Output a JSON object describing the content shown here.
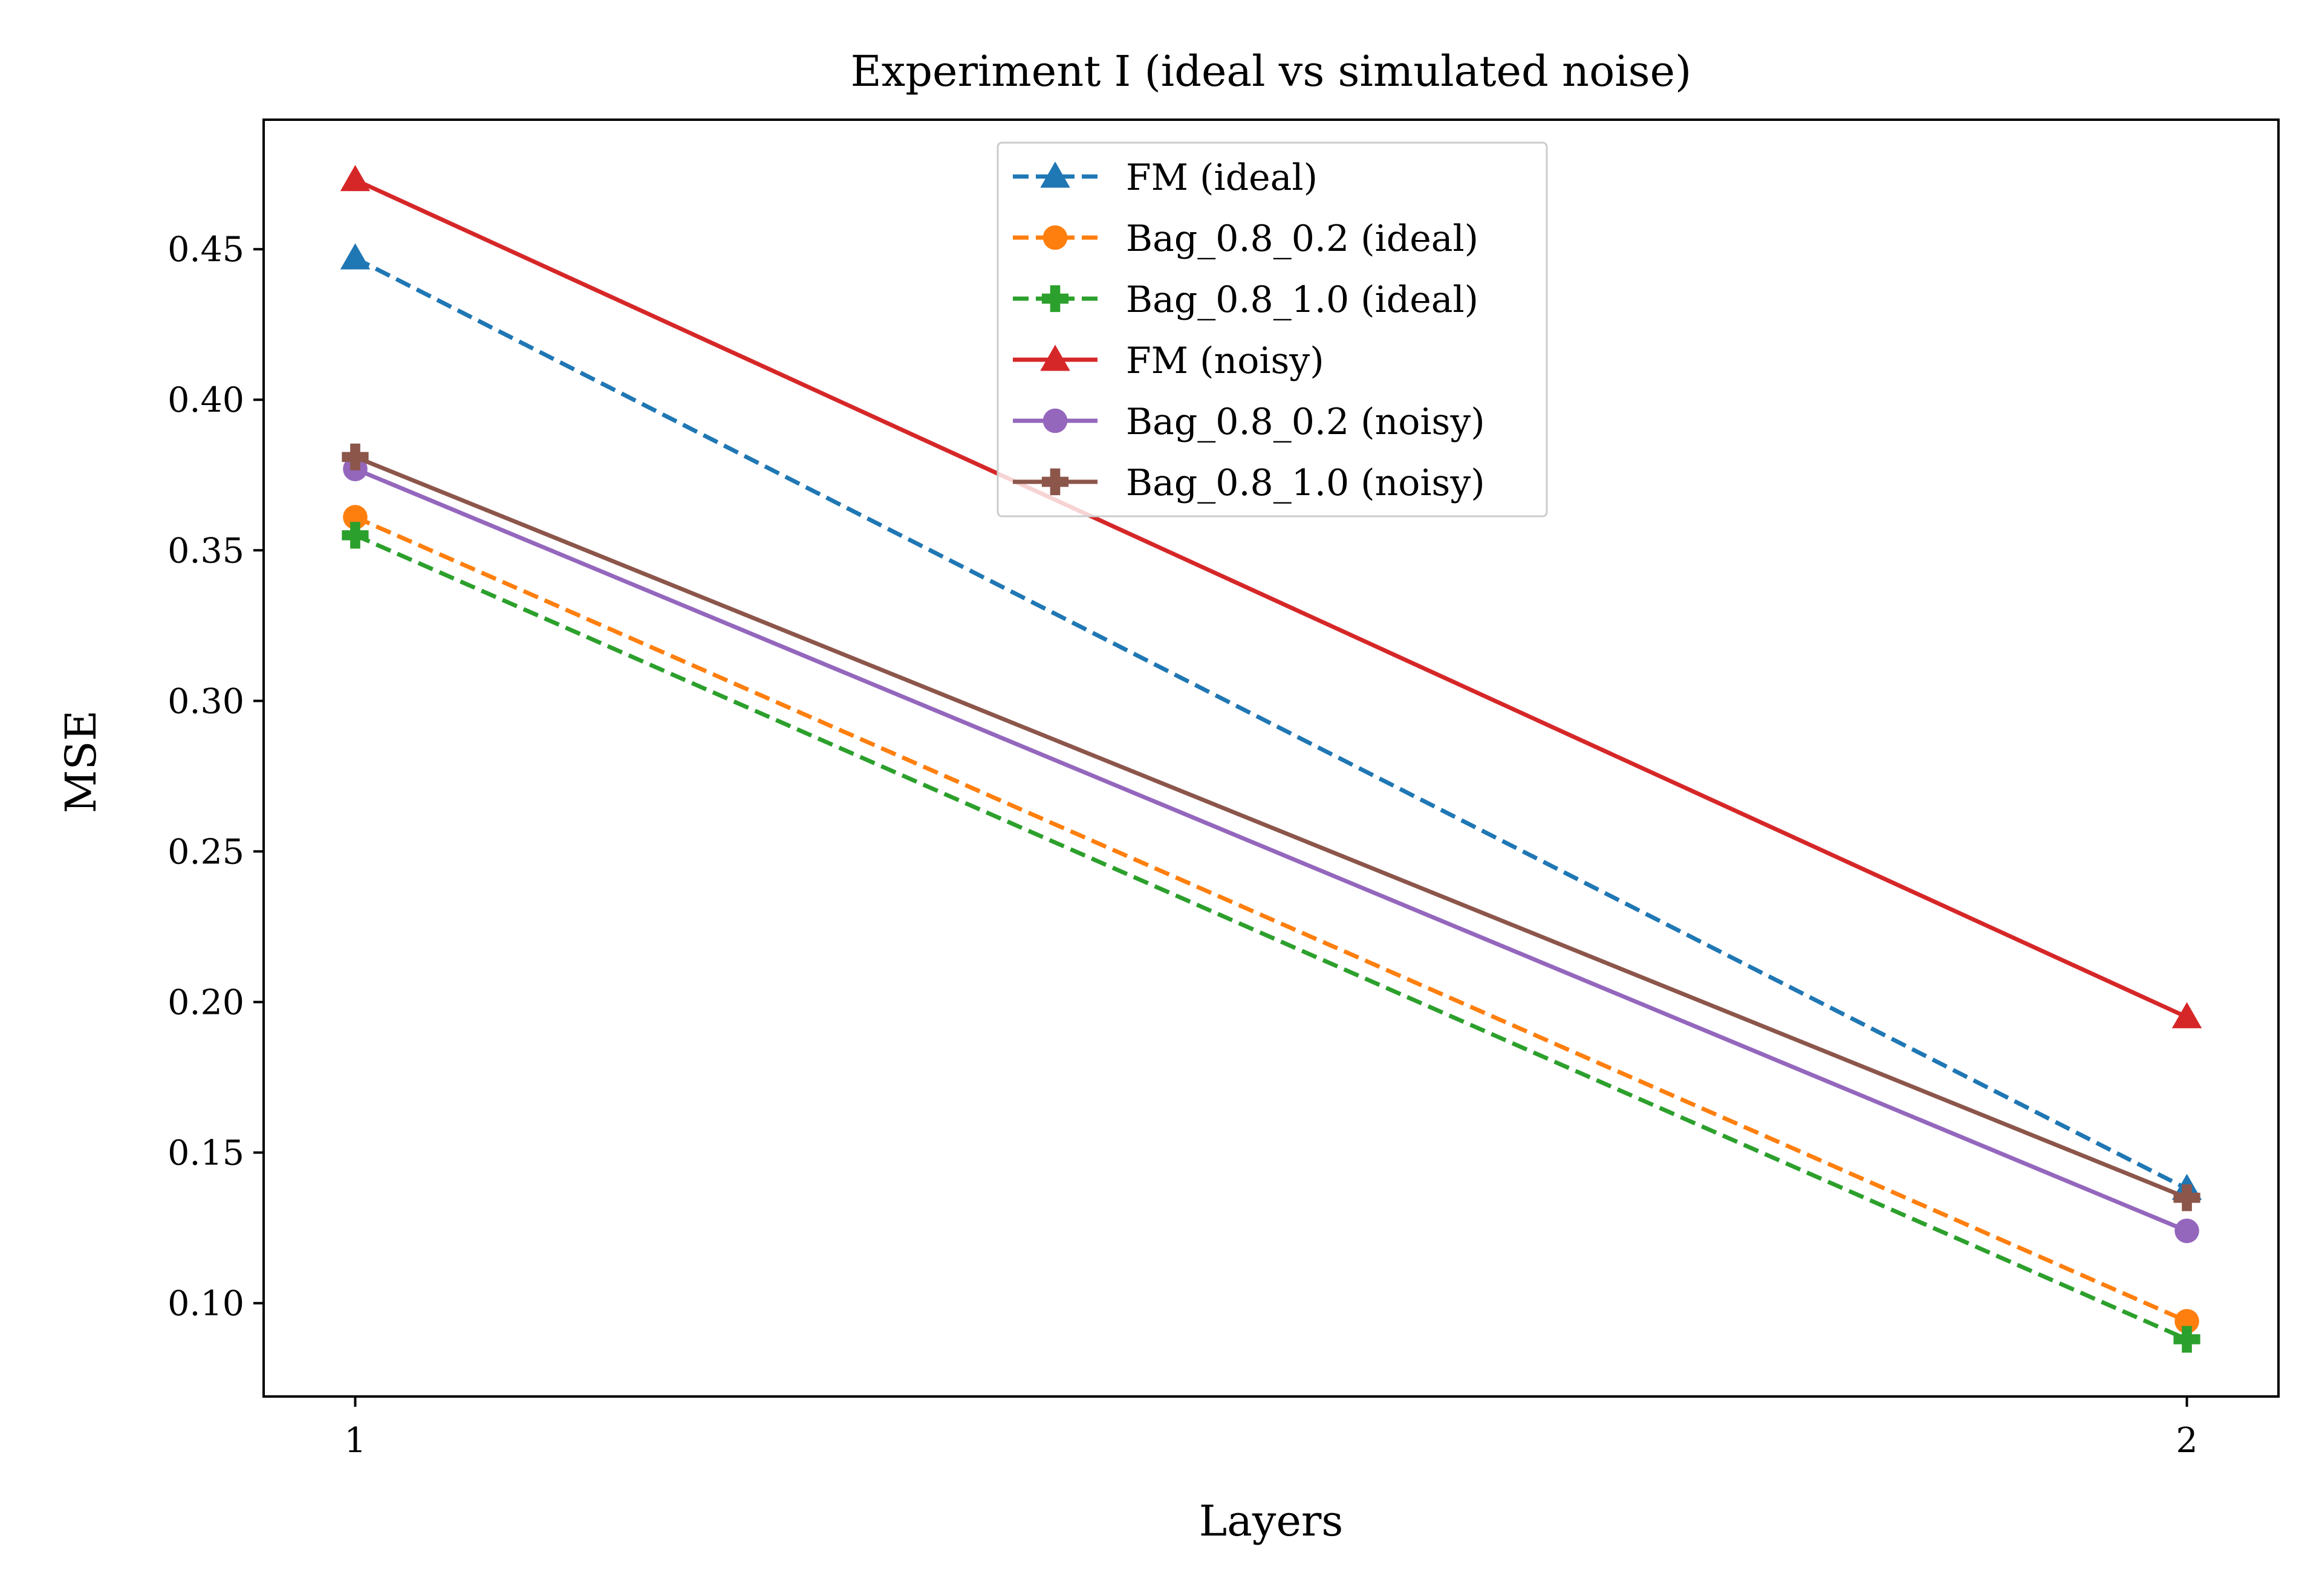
{
  "chart_data": {
    "type": "line",
    "title": "Experiment I (ideal vs simulated noise)",
    "xlabel": "Layers",
    "ylabel": "MSE",
    "x": [
      1,
      2
    ],
    "x_ticks": [
      "1",
      "2"
    ],
    "y_ticks": [
      "0.10",
      "0.15",
      "0.20",
      "0.25",
      "0.30",
      "0.35",
      "0.40",
      "0.45"
    ],
    "xlim": [
      0.95,
      2.05
    ],
    "ylim": [
      0.069,
      0.493
    ],
    "grid": false,
    "legend_position": "upper center",
    "series": [
      {
        "name": "FM (ideal)",
        "values": [
          0.447,
          0.138
        ],
        "color": "#1f77b4",
        "dashed": true,
        "marker": "triangle"
      },
      {
        "name": "Bag_0.8_0.2 (ideal)",
        "values": [
          0.361,
          0.094
        ],
        "color": "#ff7f0e",
        "dashed": true,
        "marker": "circle"
      },
      {
        "name": "Bag_0.8_1.0 (ideal)",
        "values": [
          0.355,
          0.088
        ],
        "color": "#2ca02c",
        "dashed": true,
        "marker": "plus"
      },
      {
        "name": "FM (noisy)",
        "values": [
          0.473,
          0.195
        ],
        "color": "#d62728",
        "dashed": false,
        "marker": "triangle"
      },
      {
        "name": "Bag_0.8_0.2 (noisy)",
        "values": [
          0.377,
          0.124
        ],
        "color": "#9467bd",
        "dashed": false,
        "marker": "circle"
      },
      {
        "name": "Bag_0.8_1.0 (noisy)",
        "values": [
          0.381,
          0.135
        ],
        "color": "#8c564b",
        "dashed": false,
        "marker": "plus"
      }
    ]
  }
}
